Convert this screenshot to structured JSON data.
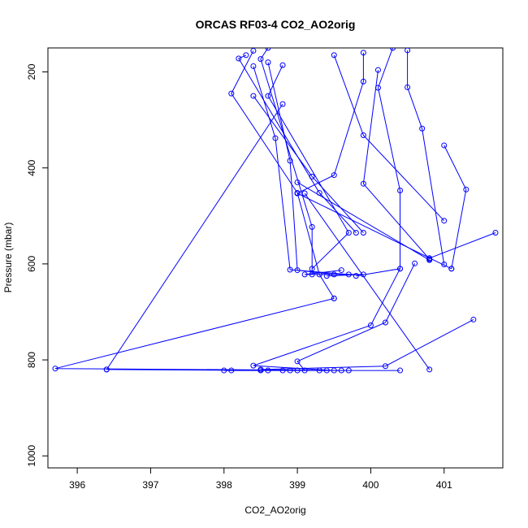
{
  "chart_data": {
    "type": "line",
    "title": "ORCAS RF03-4 CO2_AO2orig",
    "xlabel": "CO2_AO2orig",
    "ylabel": "Pressure (mbar)",
    "xlim": [
      395.6,
      401.8
    ],
    "ylim": [
      1025,
      150
    ],
    "y_reversed": true,
    "grid": false,
    "series_color": "#0000ff",
    "marker": "open-circle",
    "x_ticks": [
      396,
      397,
      398,
      399,
      400,
      401
    ],
    "y_ticks": [
      200,
      400,
      600,
      800,
      1000
    ],
    "x_tick_labels": [
      "396",
      "397",
      "398",
      "399",
      "400",
      "401"
    ],
    "y_tick_labels": [
      "200",
      "400",
      "600",
      "800",
      "1000"
    ],
    "series": [
      {
        "segments": [
          [
            [
              398.4,
              156
            ],
            [
              398.1,
              245
            ],
            [
              399.0,
              452
            ],
            [
              399.3,
              622
            ],
            [
              399.5,
              672
            ]
          ],
          [
            [
              398.6,
              150
            ],
            [
              398.5,
              173
            ],
            [
              399.2,
              523
            ],
            [
              399.2,
              622
            ]
          ],
          [
            [
              398.8,
              186
            ],
            [
              398.6,
              250
            ],
            [
              399.7,
              535
            ],
            [
              399.2,
              610
            ]
          ],
          [
            [
              398.3,
              165
            ],
            [
              398.2,
              172
            ],
            [
              399.3,
              452
            ],
            [
              399.8,
              535
            ]
          ],
          [
            [
              398.4,
              188
            ],
            [
              398.7,
              338
            ],
            [
              398.9,
              612
            ],
            [
              399.7,
              622
            ]
          ],
          [
            [
              398.8,
              267
            ],
            [
              396.4,
              820
            ]
          ],
          [
            [
              398.4,
              250
            ],
            [
              399.2,
              418
            ],
            [
              399.9,
              535
            ]
          ],
          [
            [
              398.6,
              180
            ],
            [
              398.9,
              385
            ],
            [
              399.0,
              613
            ],
            [
              399.5,
              622
            ]
          ],
          [
            [
              399.5,
              165
            ],
            [
              399.9,
              332
            ],
            [
              401.0,
              510
            ]
          ],
          [
            [
              399.9,
              160
            ],
            [
              399.9,
              220
            ],
            [
              399.5,
              415
            ],
            [
              399.0,
              453
            ]
          ],
          [
            [
              400.1,
              196
            ],
            [
              399.9,
              433
            ],
            [
              400.8,
              590
            ]
          ],
          [
            [
              400.5,
              155
            ],
            [
              400.5,
              232
            ],
            [
              400.7,
              318
            ],
            [
              401.0,
              601
            ]
          ],
          [
            [
              400.3,
              150
            ],
            [
              400.1,
              233
            ],
            [
              400.4,
              447
            ],
            [
              400.4,
              610
            ],
            [
              399.8,
              625
            ]
          ],
          [
            [
              399.6,
              613
            ],
            [
              399.1,
              622
            ],
            [
              399.9,
              622
            ],
            [
              399.4,
              625
            ]
          ],
          [
            [
              400.6,
              599
            ],
            [
              400.2,
              722
            ],
            [
              399.0,
              803
            ],
            [
              399.1,
              822
            ]
          ],
          [
            [
              399.0,
              430
            ],
            [
              400.8,
              592
            ]
          ],
          [
            [
              399.0,
              453
            ],
            [
              401.1,
              610
            ]
          ],
          [
            [
              401.0,
              353
            ],
            [
              401.3,
              445
            ],
            [
              401.1,
              610
            ]
          ],
          [
            [
              401.7,
              535
            ],
            [
              400.8,
              588
            ]
          ],
          [
            [
              400.4,
              610
            ],
            [
              400.0,
              728
            ],
            [
              398.4,
              812
            ],
            [
              399.5,
              822
            ]
          ],
          [
            [
              401.4,
              716
            ],
            [
              400.2,
              813
            ],
            [
              398.5,
              820
            ]
          ],
          [
            [
              399.5,
              672
            ],
            [
              395.7,
              818
            ],
            [
              399.7,
              822
            ],
            [
              398.0,
              822
            ],
            [
              400.4,
              822
            ],
            [
              398.1,
              822
            ],
            [
              399.0,
              822
            ],
            [
              399.4,
              822
            ],
            [
              398.6,
              822
            ],
            [
              398.8,
              822
            ],
            [
              398.9,
              822
            ],
            [
              399.3,
              822
            ],
            [
              399.6,
              822
            ],
            [
              398.5,
              822
            ],
            [
              396.4,
              820
            ]
          ],
          [
            [
              399.1,
              453
            ],
            [
              400.8,
              820
            ]
          ]
        ]
      }
    ]
  }
}
